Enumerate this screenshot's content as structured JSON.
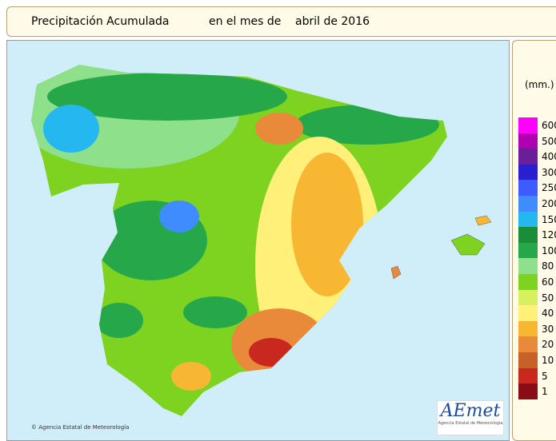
{
  "header": {
    "title": "Precipitación Acumulada",
    "period_prefix": "en el mes de",
    "period": "abril de 2016"
  },
  "legend": {
    "unit": "(mm.)",
    "items": [
      {
        "label": "600",
        "color": "#ff00ff"
      },
      {
        "label": "500",
        "color": "#b000b0"
      },
      {
        "label": "400",
        "color": "#6a1e9a"
      },
      {
        "label": "300",
        "color": "#2a1fd0"
      },
      {
        "label": "250",
        "color": "#3c5cff"
      },
      {
        "label": "200",
        "color": "#3f8cff"
      },
      {
        "label": "150",
        "color": "#25b8f0"
      },
      {
        "label": "120",
        "color": "#1a8c3a"
      },
      {
        "label": "100",
        "color": "#26a84a"
      },
      {
        "label": "80",
        "color": "#8ee08a"
      },
      {
        "label": "60",
        "color": "#7ed321"
      },
      {
        "label": "50",
        "color": "#d8f060"
      },
      {
        "label": "40",
        "color": "#fff07a"
      },
      {
        "label": "30",
        "color": "#f7b733"
      },
      {
        "label": "20",
        "color": "#e98a3a"
      },
      {
        "label": "10",
        "color": "#c8602a"
      },
      {
        "label": "5",
        "color": "#c8281e"
      },
      {
        "label": "1",
        "color": "#8a0c14"
      }
    ]
  },
  "footer": {
    "copyright": "© Agencia Estatal de Meteorología"
  },
  "logo": {
    "name": "AEmet",
    "subtitle": "Agencia Estatal de Meteorología"
  }
}
